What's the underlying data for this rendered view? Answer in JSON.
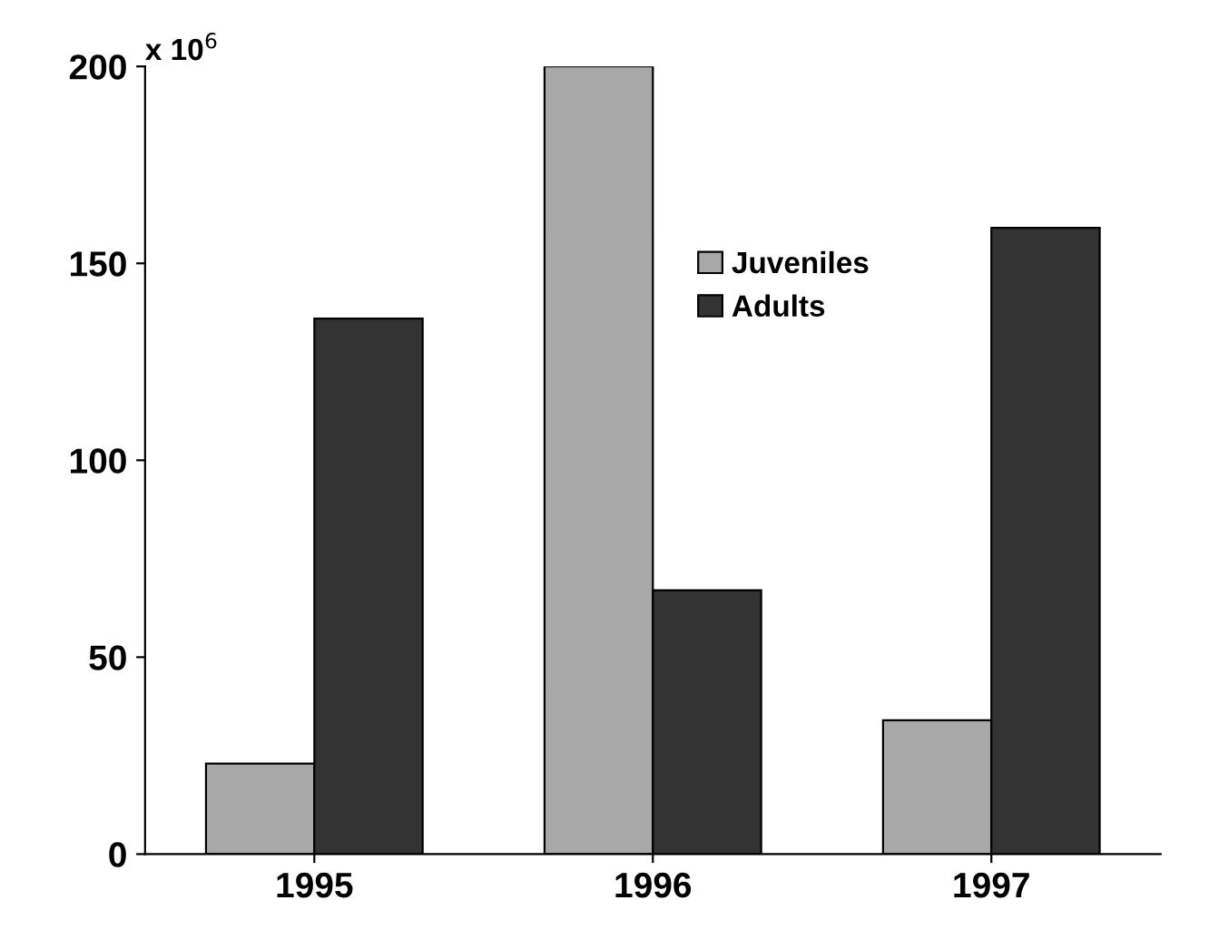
{
  "chart_data": {
    "type": "bar",
    "categories": [
      "1995",
      "1996",
      "1997"
    ],
    "series": [
      {
        "name": "Juveniles",
        "color": "#a8a8a8",
        "values": [
          23,
          200,
          34
        ]
      },
      {
        "name": "Adults",
        "color": "#333333",
        "values": [
          136,
          67,
          159
        ]
      }
    ],
    "ylim": [
      0,
      200
    ],
    "yticks": [
      0,
      50,
      100,
      150,
      200
    ],
    "annotations": [
      "x 10$^{6}$"
    ],
    "grid": false,
    "legend": "top right"
  }
}
